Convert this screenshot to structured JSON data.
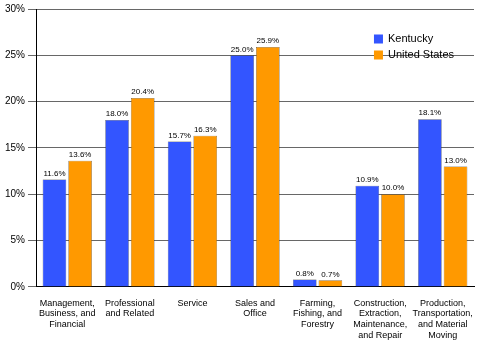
{
  "chart_data": {
    "type": "bar",
    "categories": [
      "Management, Business, and Financial",
      "Professional and Related",
      "Service",
      "Sales and Office",
      "Farming, Fishing, and Forestry",
      "Construction, Extraction, Maintenance, and Repair",
      "Production, Transportation, and Material Moving"
    ],
    "series": [
      {
        "name": "Kentucky",
        "color": "#3355ff",
        "values": [
          11.6,
          18.0,
          15.7,
          25.0,
          0.8,
          10.9,
          18.1
        ],
        "value_labels": [
          "11.6%",
          "18.0%",
          "15.7%",
          "25.0%",
          "0.8%",
          "10.9%",
          "18.1%"
        ]
      },
      {
        "name": "United States",
        "color": "#ff9900",
        "values": [
          13.6,
          20.4,
          16.3,
          25.9,
          0.7,
          10.0,
          13.0
        ],
        "value_labels": [
          "13.6%",
          "20.4%",
          "16.3%",
          "25.9%",
          "0.7%",
          "10.0%",
          "13.0%"
        ]
      }
    ],
    "ylim": [
      0,
      30
    ],
    "yticks": [
      {
        "value": 0,
        "label": "0%"
      },
      {
        "value": 5,
        "label": "5%"
      },
      {
        "value": 10,
        "label": "10%"
      },
      {
        "value": 15,
        "label": "15%"
      },
      {
        "value": 20,
        "label": "20%"
      },
      {
        "value": 25,
        "label": "25%"
      },
      {
        "value": 30,
        "label": "30%"
      }
    ],
    "grid": true,
    "legend": "upper right",
    "data_labels": true
  }
}
